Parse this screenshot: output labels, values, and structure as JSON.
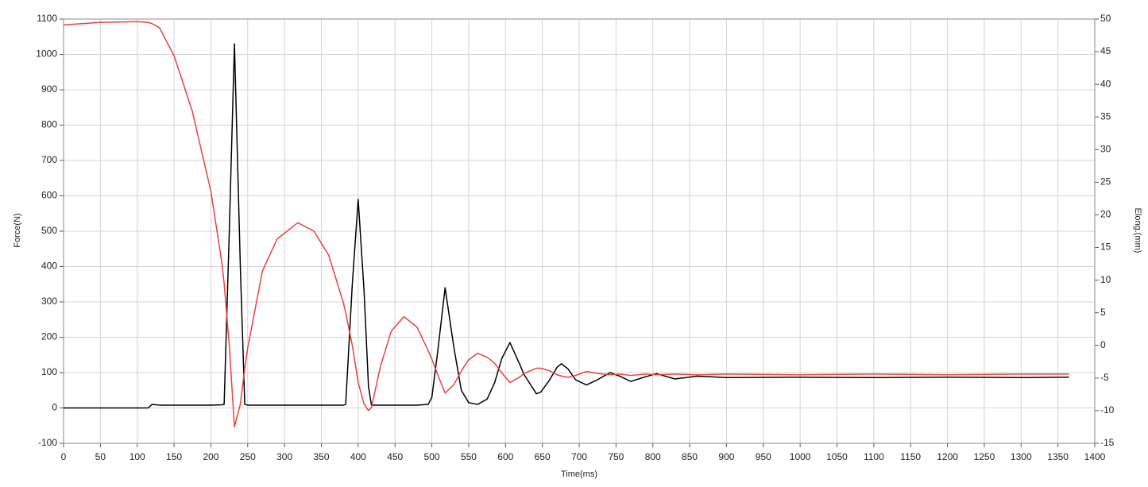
{
  "chart_data": {
    "type": "line",
    "xlabel": "Time(ms)",
    "ylabel": "Force(N)",
    "y2label": "Elong.(mm)",
    "x": [
      0,
      50,
      100,
      115,
      120,
      130,
      150,
      175,
      200,
      215,
      218,
      225,
      232,
      240,
      246,
      250,
      270,
      290,
      318,
      340,
      360,
      380,
      383,
      392,
      400,
      408,
      414,
      418,
      430,
      445,
      462,
      480,
      495,
      500,
      508,
      518,
      530,
      540,
      550,
      562,
      575,
      585,
      595,
      606,
      620,
      625,
      642,
      648,
      660,
      670,
      676,
      685,
      695,
      710,
      725,
      742,
      755,
      770,
      790,
      805,
      830,
      860,
      900,
      1000,
      1100,
      1200,
      1300,
      1365
    ],
    "series": [
      {
        "color": "#000000",
        "axis": "y",
        "values": [
          0,
          0,
          0,
          0,
          10,
          8,
          8,
          8,
          8,
          9,
          10,
          500,
          1030,
          400,
          10,
          8,
          8,
          8,
          8,
          8,
          8,
          8,
          10,
          350,
          590,
          330,
          60,
          8,
          8,
          8,
          8,
          8,
          10,
          30,
          160,
          340,
          170,
          50,
          15,
          10,
          25,
          70,
          140,
          185,
          120,
          95,
          40,
          45,
          80,
          115,
          125,
          110,
          80,
          65,
          80,
          100,
          90,
          75,
          88,
          97,
          82,
          90,
          86,
          87,
          86,
          87,
          86,
          87
        ]
      },
      {
        "color": "#e8423c",
        "axis": "y2",
        "values": [
          49.1,
          49.5,
          49.6,
          49.5,
          49.3,
          48.7,
          44.4,
          35.8,
          23.6,
          12.6,
          9.5,
          0,
          -12.5,
          -9,
          -3.5,
          -0.4,
          11.4,
          16.3,
          18.8,
          17.5,
          13.8,
          6.5,
          5,
          0,
          -5.7,
          -9,
          -10,
          -9.5,
          -3.3,
          2.2,
          4.4,
          2.8,
          -0.8,
          -2.1,
          -4.5,
          -7.3,
          -6,
          -3.9,
          -2.2,
          -1.2,
          -1.8,
          -2.7,
          -4.2,
          -5.7,
          -4.8,
          -4.3,
          -3.5,
          -3.5,
          -3.9,
          -4.5,
          -4.7,
          -4.9,
          -4.6,
          -4.0,
          -4.3,
          -4.5,
          -4.4,
          -4.6,
          -4.4,
          -4.5,
          -4.4,
          -4.5,
          -4.4,
          -4.5,
          -4.4,
          -4.5,
          -4.4,
          -4.4
        ]
      }
    ],
    "xlim": [
      0,
      1400
    ],
    "xticks": [
      0,
      50,
      100,
      150,
      200,
      250,
      300,
      350,
      400,
      450,
      500,
      550,
      600,
      650,
      700,
      750,
      800,
      850,
      900,
      950,
      1000,
      1050,
      1100,
      1150,
      1200,
      1250,
      1300,
      1350,
      1400
    ],
    "ylim": [
      -100,
      1100
    ],
    "yticks": [
      -100,
      0,
      100,
      200,
      300,
      400,
      500,
      600,
      700,
      800,
      900,
      1000,
      1100
    ],
    "y2lim": [
      -15,
      50
    ],
    "y2ticks": [
      -15,
      -10,
      -5,
      0,
      5,
      10,
      15,
      20,
      25,
      30,
      35,
      40,
      45,
      50
    ],
    "grid": true
  }
}
